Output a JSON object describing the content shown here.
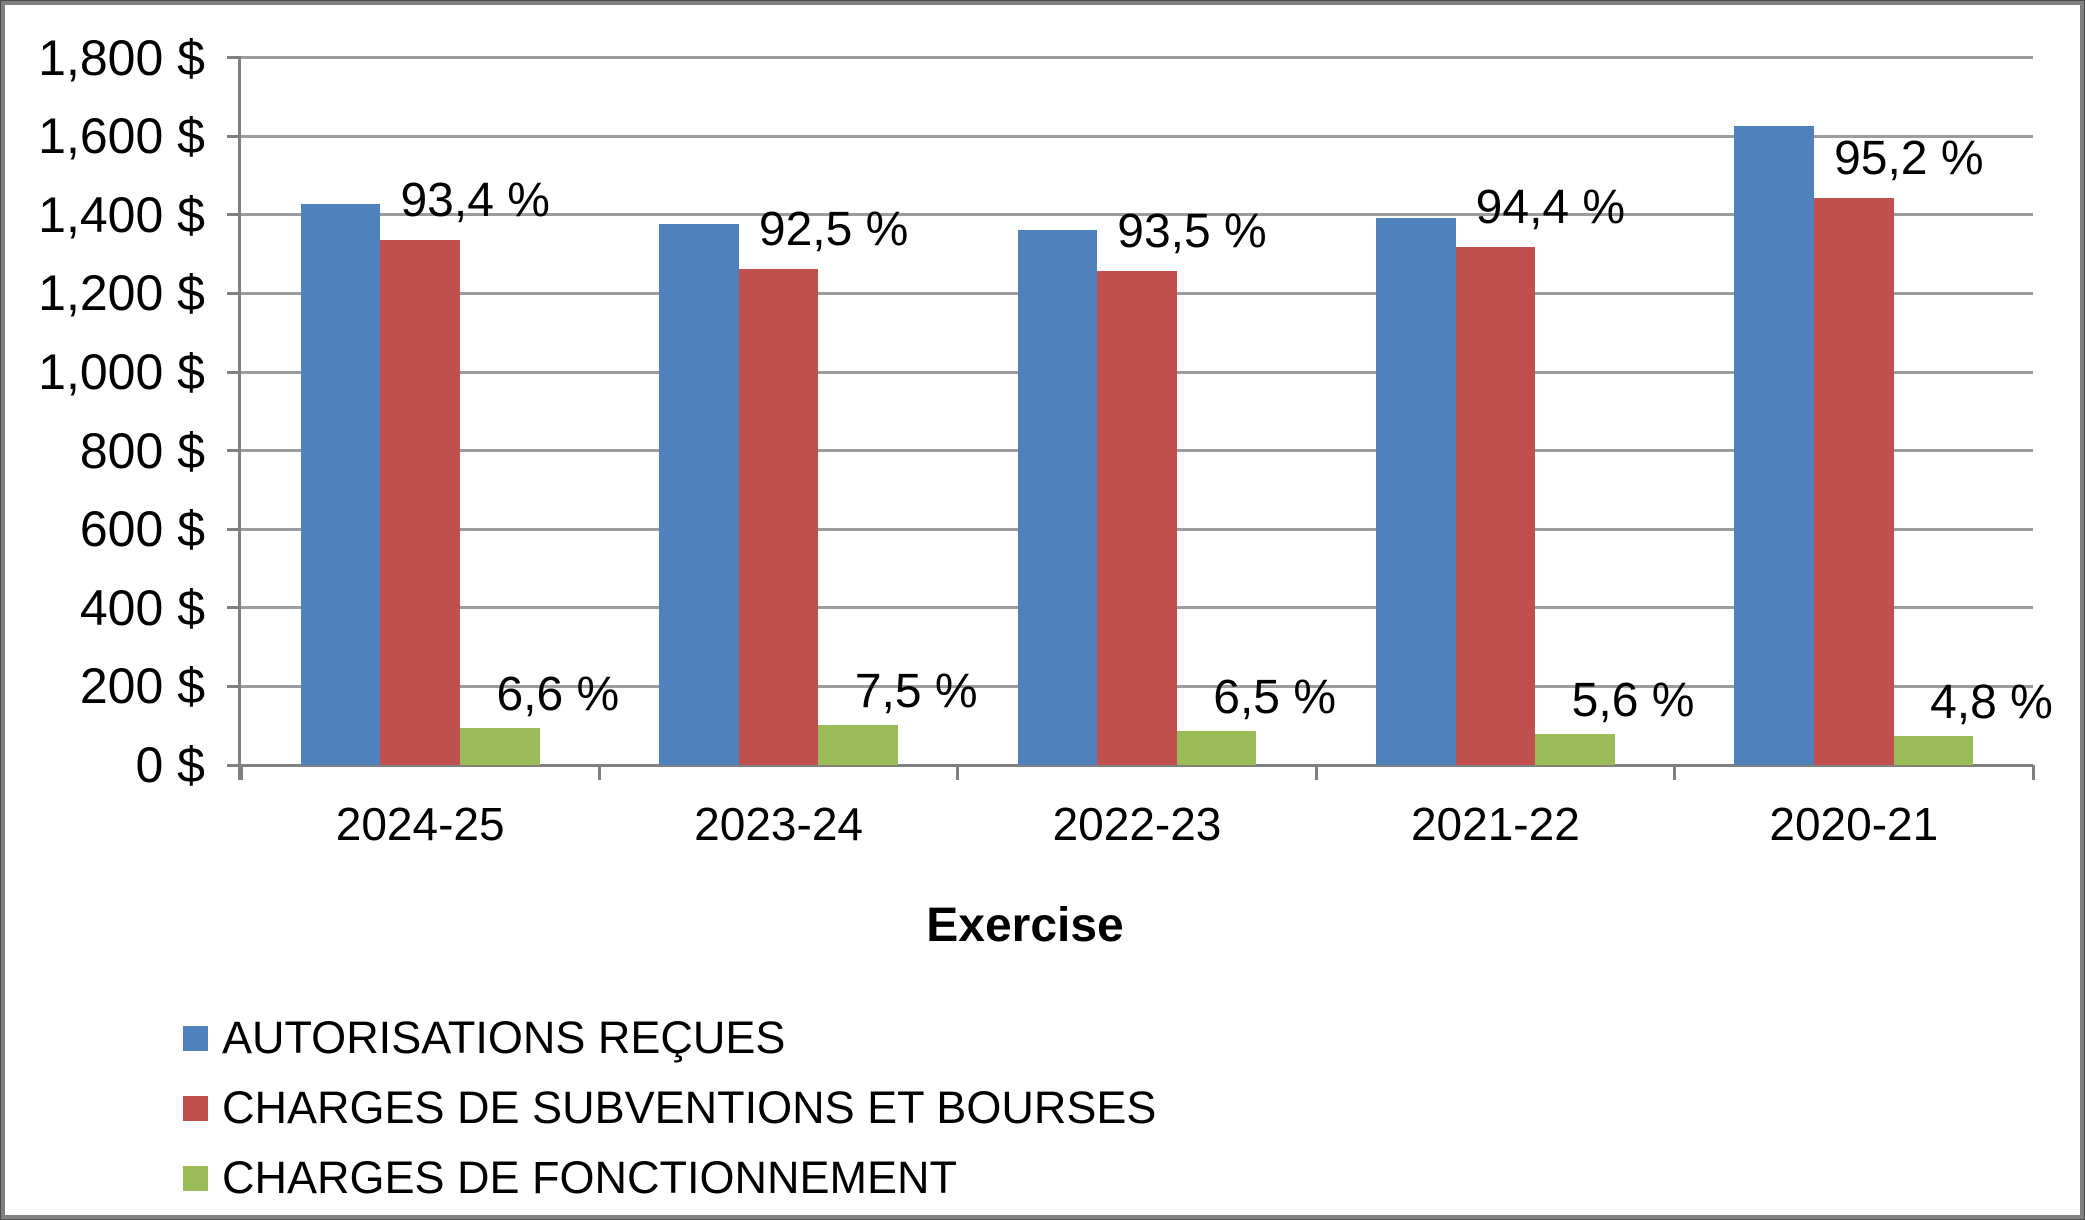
{
  "chart_data": {
    "type": "bar",
    "title": "",
    "xlabel": "Exercise",
    "ylabel": "",
    "categories": [
      "2024-25",
      "2023-24",
      "2022-23",
      "2021-22",
      "2020-21"
    ],
    "series": [
      {
        "name": "AUTORISATIONS REÇUES",
        "color": "#4F81BD",
        "values": [
          1427,
          1377,
          1361,
          1392,
          1626
        ],
        "labels": [
          "",
          "",
          "",
          "",
          ""
        ]
      },
      {
        "name": "CHARGES DE SUBVENTIONS ET BOURSES",
        "color": "#C0504D",
        "values": [
          1335,
          1261,
          1258,
          1319,
          1444
        ],
        "labels": [
          "93,4 %",
          "92,5 %",
          "93,5 %",
          "94,4 %",
          "95,2 %"
        ]
      },
      {
        "name": "CHARGES DE FONCTIONNEMENT",
        "color": "#9BBB59",
        "values": [
          94,
          102,
          87,
          78,
          73
        ],
        "labels": [
          "6,6 %",
          "7,5 %",
          "6,5 %",
          "5,6 %",
          "4,8 %"
        ]
      }
    ],
    "y_axis": {
      "min": 0,
      "max": 1800,
      "step": 200,
      "unit": "$",
      "tick_labels": [
        "0 $",
        "200 $",
        "400 $",
        "600 $",
        "800 $",
        "1,000 $",
        "1,200 $",
        "1,400 $",
        "1,600 $",
        "1,800 $"
      ]
    },
    "grid": true,
    "legend_position": "bottom-left"
  },
  "colors": {
    "grid": "#9C9C9C",
    "axis": "#808080",
    "text": "#000000",
    "border": "#808080",
    "background": "#FFFFFF"
  }
}
